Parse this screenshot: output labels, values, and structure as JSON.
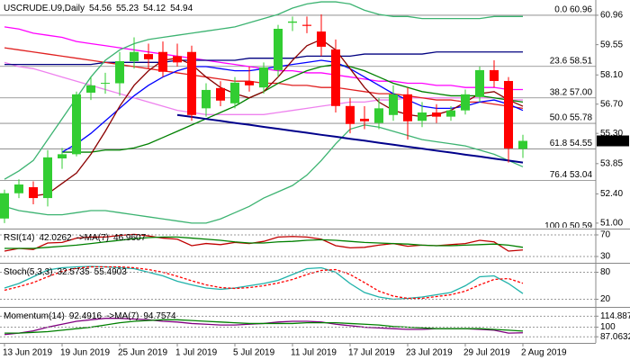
{
  "chart_data": [
    {
      "type": "candlestick",
      "title": "USCRUDE.U9,Daily",
      "categories": [
        "13 Jun 2019",
        null,
        null,
        null,
        "19 Jun 2019",
        null,
        null,
        null,
        "25 Jun 2019",
        null,
        null,
        null,
        "1 Jul 2019",
        null,
        null,
        null,
        "5 Jul 2019",
        null,
        null,
        null,
        "11 Jul 2019",
        null,
        null,
        null,
        "17 Jul 2019",
        null,
        null,
        null,
        "23 Jul 2019",
        null,
        null,
        null,
        "29 Jul 2019",
        null,
        null,
        null,
        "2 Aug 2019"
      ],
      "open": [
        51.22,
        52.43,
        52.72,
        52.2,
        54.1,
        54.3,
        57.25,
        57.7,
        57.7,
        58.76,
        59.1,
        59.2,
        59.0,
        59.2,
        56.5,
        57.47,
        56.74,
        57.8,
        57.5,
        58.33,
        60.6,
        60.5,
        60.18,
        59.32,
        56.61,
        56.0,
        55.8,
        56.18,
        57.17,
        55.9,
        56.3,
        56.1,
        56.4,
        57.04,
        58.33,
        57.81,
        54.56
      ],
      "high": [
        52.6,
        53.1,
        53.0,
        54.5,
        54.6,
        57.3,
        58.0,
        58.2,
        59.2,
        59.9,
        59.6,
        59.7,
        59.6,
        59.5,
        57.7,
        57.8,
        58.0,
        58.5,
        58.7,
        60.5,
        60.9,
        60.9,
        61.0,
        59.8,
        57.0,
        56.6,
        57.0,
        57.6,
        57.5,
        56.8,
        56.7,
        56.6,
        57.4,
        58.5,
        58.8,
        58.0,
        55.23
      ],
      "low": [
        51.0,
        52.2,
        51.9,
        51.8,
        53.6,
        54.2,
        56.9,
        57.2,
        57.1,
        58.4,
        58.4,
        58.0,
        58.5,
        55.9,
        56.1,
        56.6,
        56.5,
        57.3,
        57.2,
        58.0,
        60.2,
        60.1,
        59.0,
        56.3,
        55.3,
        55.5,
        55.5,
        55.9,
        55.0,
        55.6,
        55.8,
        55.9,
        56.2,
        56.8,
        57.5,
        53.9,
        54.12
      ],
      "close": [
        52.43,
        52.85,
        52.2,
        54.15,
        54.3,
        57.17,
        57.6,
        57.72,
        58.76,
        59.2,
        58.85,
        58.25,
        58.7,
        56.18,
        57.38,
        56.87,
        57.73,
        57.6,
        58.46,
        60.31,
        60.66,
        60.45,
        59.45,
        56.61,
        55.75,
        55.88,
        56.5,
        57.17,
        55.88,
        56.3,
        56.1,
        56.4,
        57.17,
        58.33,
        57.81,
        54.58,
        54.94
      ],
      "up_color": "#32cd32",
      "down_color": "#ff0000",
      "series": [
        {
          "color": "#ff00ff",
          "values": [
            60.4,
            60.3,
            60.1,
            60.0,
            59.9,
            59.7,
            59.6,
            59.5,
            59.4,
            59.3,
            59.2,
            59.1,
            59.0,
            58.9,
            58.8,
            58.7,
            58.6,
            58.5,
            58.4,
            58.3,
            58.3,
            58.2,
            58.2,
            58.1,
            58.0,
            57.9,
            57.8,
            57.8,
            57.7,
            57.7,
            57.6,
            57.6,
            57.5,
            57.5,
            57.5,
            57.4,
            57.4
          ]
        },
        {
          "color": "#ee82ee",
          "values": [
            58.7,
            58.5,
            58.4,
            58.2,
            58.0,
            57.8,
            57.6,
            57.4,
            57.2,
            57.0,
            56.8,
            56.6,
            56.4,
            56.3,
            56.2,
            56.2,
            56.2,
            56.2,
            56.2,
            56.3,
            56.4,
            56.5,
            56.6,
            56.7,
            56.8,
            56.8,
            56.9,
            56.9,
            57.0,
            57.0,
            57.0,
            57.0,
            57.0,
            57.0,
            57.0,
            56.9,
            56.9
          ]
        },
        {
          "color": "#000080",
          "values": [
            58.6,
            58.6,
            58.6,
            58.6,
            58.6,
            58.6,
            58.6,
            58.7,
            58.7,
            58.7,
            58.7,
            58.7,
            58.8,
            58.8,
            58.8,
            58.8,
            58.8,
            58.9,
            58.9,
            58.9,
            58.9,
            59.0,
            59.0,
            59.0,
            59.0,
            59.1,
            59.1,
            59.1,
            59.1,
            59.1,
            59.2,
            59.2,
            59.2,
            59.2,
            59.2,
            59.2,
            59.2
          ]
        },
        {
          "color": "#e02020",
          "values": [
            59.4,
            59.3,
            59.2,
            59.1,
            59.0,
            58.9,
            58.8,
            58.7,
            58.6,
            58.5,
            58.4,
            58.3,
            58.2,
            58.1,
            58.0,
            57.9,
            57.8,
            57.8,
            57.7,
            57.7,
            57.6,
            57.6,
            57.5,
            57.5,
            57.4,
            57.3,
            57.2,
            57.2,
            57.1,
            57.0,
            56.9,
            56.9,
            56.8,
            56.8,
            56.7,
            56.6,
            56.5
          ]
        },
        {
          "color": "#3cb371",
          "values": [
            53.1,
            53.5,
            54.0,
            55.0,
            56.0,
            57.0,
            58.0,
            58.8,
            59.3,
            59.6,
            59.8,
            59.9,
            60.0,
            60.1,
            60.2,
            60.3,
            60.4,
            60.6,
            60.8,
            61.0,
            61.3,
            61.5,
            61.6,
            61.6,
            61.5,
            61.2,
            61.0,
            60.9,
            60.9,
            60.8,
            60.8,
            60.8,
            60.8,
            60.8,
            60.9,
            60.9,
            60.9
          ]
        },
        {
          "color": "#3cb371",
          "values": [
            51.8,
            51.6,
            51.5,
            51.4,
            51.4,
            51.5,
            51.6,
            51.6,
            51.5,
            51.4,
            51.3,
            51.2,
            51.1,
            51.0,
            51.0,
            51.2,
            51.5,
            51.8,
            52.2,
            52.5,
            52.8,
            53.3,
            54.0,
            54.8,
            55.5,
            55.7,
            55.6,
            55.4,
            55.2,
            55.0,
            54.9,
            54.8,
            54.7,
            54.5,
            54.3,
            54.0,
            53.7
          ]
        },
        {
          "color": "#008000",
          "values": [
            null,
            null,
            null,
            null,
            54.4,
            54.4,
            54.4,
            54.5,
            54.5,
            54.6,
            54.8,
            55.1,
            55.4,
            55.7,
            56.0,
            56.3,
            56.6,
            57.0,
            57.3,
            57.7,
            58.0,
            58.3,
            58.5,
            58.6,
            58.5,
            58.3,
            58.0,
            57.7,
            57.5,
            57.3,
            57.2,
            57.1,
            57.1,
            57.1,
            57.0,
            56.9,
            56.8
          ]
        },
        {
          "color": "#0000ff",
          "values": [
            null,
            null,
            null,
            null,
            54.4,
            54.8,
            55.3,
            55.9,
            56.5,
            57.1,
            57.6,
            58.0,
            58.3,
            58.5,
            58.5,
            58.4,
            58.3,
            58.3,
            58.4,
            58.5,
            58.6,
            58.7,
            58.8,
            58.7,
            58.4,
            58.0,
            57.6,
            57.2,
            56.9,
            56.6,
            56.5,
            56.5,
            56.6,
            56.8,
            56.9,
            56.7,
            56.4
          ]
        },
        {
          "color": "#8b0000",
          "values": [
            null,
            null,
            52.3,
            52.4,
            52.9,
            53.4,
            54.3,
            55.4,
            56.6,
            57.6,
            58.3,
            58.8,
            58.9,
            58.6,
            58.0,
            57.5,
            57.2,
            57.0,
            57.3,
            58.0,
            58.8,
            59.5,
            59.8,
            59.3,
            58.4,
            57.5,
            56.8,
            56.4,
            56.2,
            56.1,
            56.2,
            56.4,
            56.8,
            57.2,
            57.3,
            56.9,
            56.6
          ]
        }
      ],
      "trendline": {
        "color": "#00008b",
        "values": [
          null,
          null,
          null,
          null,
          null,
          null,
          null,
          null,
          null,
          null,
          null,
          null,
          56.18,
          56.09,
          55.99,
          55.9,
          55.8,
          55.71,
          55.61,
          55.52,
          55.42,
          55.33,
          55.23,
          55.14,
          55.04,
          54.95,
          54.85,
          54.76,
          54.66,
          54.57,
          54.47,
          54.38,
          54.28,
          54.19,
          54.09,
          54.0,
          53.9
        ]
      },
      "fib_levels": [
        {
          "label": "0.0 60.96",
          "value": 60.96
        },
        {
          "label": "23.6 58.51",
          "value": 58.51
        },
        {
          "label": "38.2 57.00",
          "value": 57.0
        },
        {
          "label": "50.0 55.78",
          "value": 55.78
        },
        {
          "label": "61.8 54.55",
          "value": 54.55
        },
        {
          "label": "76.4 53.04",
          "value": 53.04
        },
        {
          "label": "100.0 50.59",
          "value": 50.59
        }
      ],
      "ylim": [
        50.78,
        61.69
      ],
      "yticks": [
        {
          "value": 51,
          "label": "51.00"
        },
        {
          "value": 52.4,
          "label": "52.40"
        },
        53.85,
        {
          "value": 55.3,
          "label": "55.30"
        },
        {
          "value": 56.7,
          "label": "56.70"
        },
        {
          "value": 58.1,
          "label": "58.10"
        },
        59.55,
        60.96
      ]
    },
    {
      "type": "line",
      "title": "RSI(14)",
      "grid": true,
      "series": [
        {
          "color": "#c00000",
          "values": [
            40,
            45,
            43,
            55,
            56,
            64,
            66,
            66,
            69,
            71,
            68,
            64,
            62,
            50,
            54,
            52,
            56,
            54,
            58,
            66,
            67,
            66,
            62,
            50,
            46,
            47,
            51,
            54,
            49,
            51,
            50,
            52,
            54,
            60,
            57,
            40,
            42.0262
          ]
        },
        {
          "name": "->MA(7)",
          "color": "#008000",
          "values": [
            45,
            45,
            45,
            47,
            49,
            51,
            54,
            57,
            60,
            63,
            65,
            66,
            66,
            64,
            62,
            60,
            57,
            55,
            55,
            57,
            58,
            60,
            61,
            60,
            58,
            56,
            55,
            54,
            53,
            51,
            50,
            50,
            51,
            52,
            53,
            51,
            46.9607
          ]
        }
      ],
      "ylim": [
        20,
        78.3
      ],
      "yticks": [
        70,
        30
      ]
    },
    {
      "type": "line",
      "title": "Stoch(5,3,3)",
      "grid": true,
      "series": [
        {
          "color": "#20b2aa",
          "values": [
            45,
            55,
            70,
            85,
            90,
            92,
            93,
            92,
            90,
            88,
            80,
            72,
            60,
            52,
            45,
            42,
            45,
            50,
            55,
            62,
            75,
            88,
            90,
            80,
            55,
            35,
            25,
            20,
            22,
            25,
            30,
            35,
            50,
            70,
            72,
            55,
            32.5735
          ]
        },
        {
          "color": "#ff0000",
          "style": "dashed",
          "values": [
            40,
            48,
            57,
            70,
            82,
            89,
            92,
            92,
            92,
            90,
            86,
            80,
            71,
            61,
            52,
            46,
            44,
            46,
            50,
            56,
            64,
            75,
            84,
            86,
            75,
            57,
            38,
            27,
            22,
            22,
            26,
            30,
            38,
            52,
            64,
            66,
            55.4903
          ]
        }
      ],
      "ylim": [
        5,
        97
      ],
      "yticks": [
        80,
        20
      ]
    },
    {
      "type": "line",
      "title": "Momentum(14)",
      "grid": true,
      "series": [
        {
          "color": "#800080",
          "values": [
            90,
            92,
            95,
            100,
            104,
            108,
            110,
            112,
            112,
            111,
            110,
            108,
            107,
            105,
            104,
            103,
            103,
            104,
            105,
            107,
            108,
            108,
            107,
            104,
            102,
            100,
            99,
            98,
            97,
            97,
            98,
            98,
            98,
            97,
            96,
            92,
            92.4916
          ]
        },
        {
          "name": "->MA(7)",
          "color": "#008000",
          "values": [
            92,
            92,
            93,
            94,
            96,
            98,
            100,
            103,
            106,
            108,
            109,
            110,
            110,
            109,
            108,
            107,
            106,
            105,
            105,
            105,
            105,
            106,
            106,
            106,
            105,
            104,
            103,
            101,
            100,
            99,
            98,
            98,
            98,
            98,
            97,
            96,
            94.7574
          ]
        }
      ],
      "ylim": [
        80,
        125
      ],
      "yticks": [
        114.887,
        100,
        87.0632
      ]
    }
  ]
}
